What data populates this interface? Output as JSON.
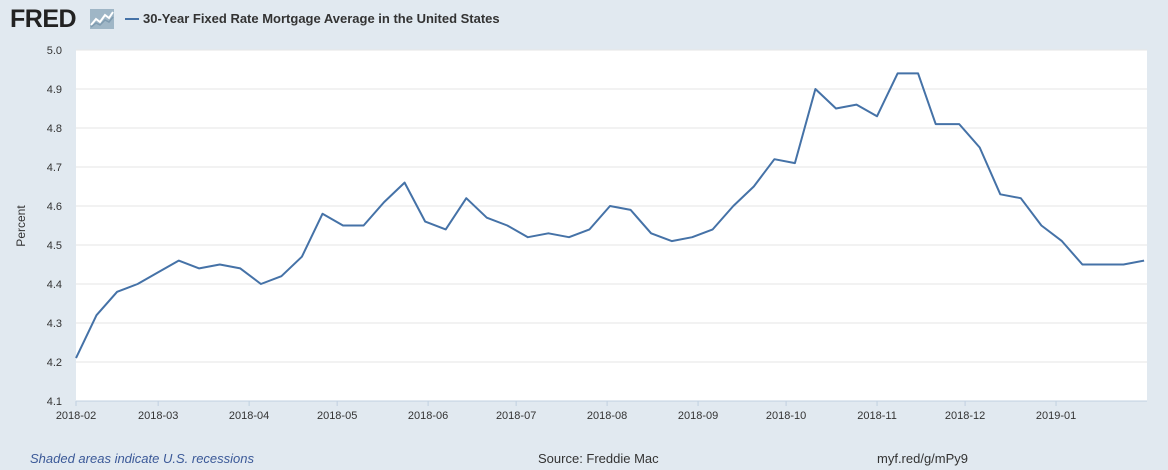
{
  "header": {
    "logo_text": "FRED",
    "title": "30-Year Fixed Rate Mortgage Average in the United States"
  },
  "footer": {
    "recession_note": "Shaded areas indicate U.S. recessions",
    "source": "Source: Freddie Mac",
    "short_url": "myf.red/g/mPy9"
  },
  "colors": {
    "series": "#4572a7",
    "background": "#e1e9f0",
    "plot_background": "#ffffff",
    "grid": "#e6e6e6"
  },
  "chart_data": {
    "type": "line",
    "title": "30-Year Fixed Rate Mortgage Average in the United States",
    "ylabel": "Percent",
    "xlabel": "",
    "ylim": [
      4.1,
      5.0
    ],
    "yticks": [
      4.1,
      4.2,
      4.3,
      4.4,
      4.5,
      4.6,
      4.7,
      4.8,
      4.9,
      5.0
    ],
    "xlim": [
      "2018-02-01",
      "2019-02-01"
    ],
    "xticks": [
      "2018-02",
      "2018-03",
      "2018-04",
      "2018-05",
      "2018-06",
      "2018-07",
      "2018-08",
      "2018-09",
      "2018-10",
      "2018-11",
      "2018-12",
      "2019-01"
    ],
    "grid": true,
    "series": [
      {
        "name": "30-Year Fixed Rate Mortgage Average in the United States",
        "x": [
          "2018-02-01",
          "2018-02-08",
          "2018-02-15",
          "2018-02-22",
          "2018-03-01",
          "2018-03-08",
          "2018-03-15",
          "2018-03-22",
          "2018-03-29",
          "2018-04-05",
          "2018-04-12",
          "2018-04-19",
          "2018-04-26",
          "2018-05-03",
          "2018-05-10",
          "2018-05-17",
          "2018-05-24",
          "2018-05-31",
          "2018-06-07",
          "2018-06-14",
          "2018-06-21",
          "2018-06-28",
          "2018-07-05",
          "2018-07-12",
          "2018-07-19",
          "2018-07-26",
          "2018-08-02",
          "2018-08-09",
          "2018-08-16",
          "2018-08-23",
          "2018-08-30",
          "2018-09-06",
          "2018-09-13",
          "2018-09-20",
          "2018-09-27",
          "2018-10-04",
          "2018-10-11",
          "2018-10-18",
          "2018-10-25",
          "2018-11-01",
          "2018-11-08",
          "2018-11-15",
          "2018-11-21",
          "2018-11-29",
          "2018-12-06",
          "2018-12-13",
          "2018-12-20",
          "2018-12-27",
          "2019-01-03",
          "2019-01-10",
          "2019-01-17",
          "2019-01-24",
          "2019-01-31"
        ],
        "y": [
          4.21,
          4.32,
          4.38,
          4.4,
          4.43,
          4.46,
          4.44,
          4.45,
          4.44,
          4.4,
          4.42,
          4.47,
          4.58,
          4.55,
          4.55,
          4.61,
          4.66,
          4.56,
          4.54,
          4.62,
          4.57,
          4.55,
          4.52,
          4.53,
          4.52,
          4.54,
          4.6,
          4.59,
          4.53,
          4.51,
          4.52,
          4.54,
          4.6,
          4.65,
          4.72,
          4.71,
          4.9,
          4.85,
          4.86,
          4.83,
          4.94,
          4.94,
          4.81,
          4.81,
          4.75,
          4.63,
          4.62,
          4.55,
          4.51,
          4.45,
          4.45,
          4.45,
          4.46
        ]
      }
    ]
  }
}
